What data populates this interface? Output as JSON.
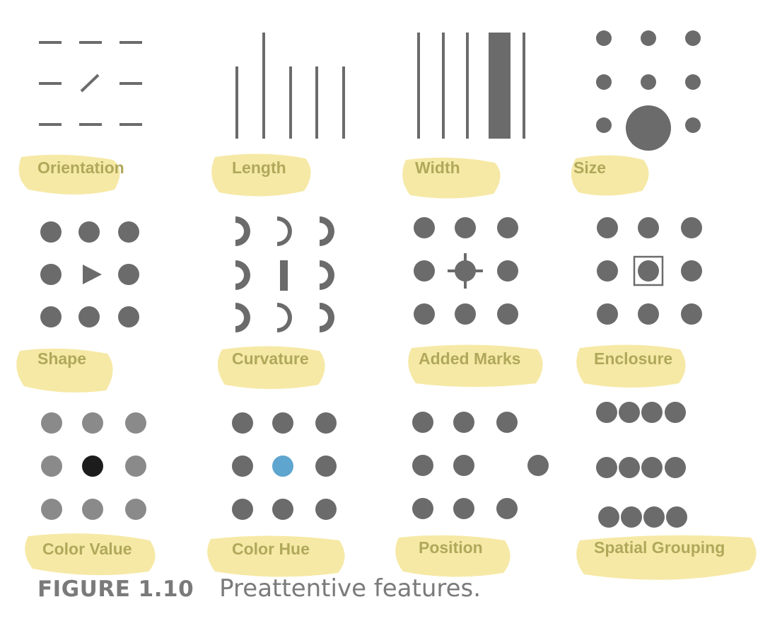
{
  "figure": {
    "colors": {
      "mark": "#6b6b6b",
      "highlight": "#f6e9a6",
      "label_text": "#b0a85a",
      "light_gray": "#8a8a8a",
      "black": "#1c1c1c",
      "blue": "#5ea5cf"
    },
    "panels": [
      {
        "id": "orientation",
        "label": "Orientation"
      },
      {
        "id": "length",
        "label": "Length"
      },
      {
        "id": "width",
        "label": "Width"
      },
      {
        "id": "size",
        "label": "Size"
      },
      {
        "id": "shape",
        "label": "Shape"
      },
      {
        "id": "curvature",
        "label": "Curvature"
      },
      {
        "id": "added-marks",
        "label": "Added Marks"
      },
      {
        "id": "enclosure",
        "label": "Enclosure"
      },
      {
        "id": "color-value",
        "label": "Color Value"
      },
      {
        "id": "color-hue",
        "label": "Color Hue"
      },
      {
        "id": "position",
        "label": "Position"
      },
      {
        "id": "spatial-grouping",
        "label": "Spatial Grouping"
      }
    ]
  },
  "caption": {
    "label": "FIGURE 1.10",
    "text": "Preattentive features."
  }
}
